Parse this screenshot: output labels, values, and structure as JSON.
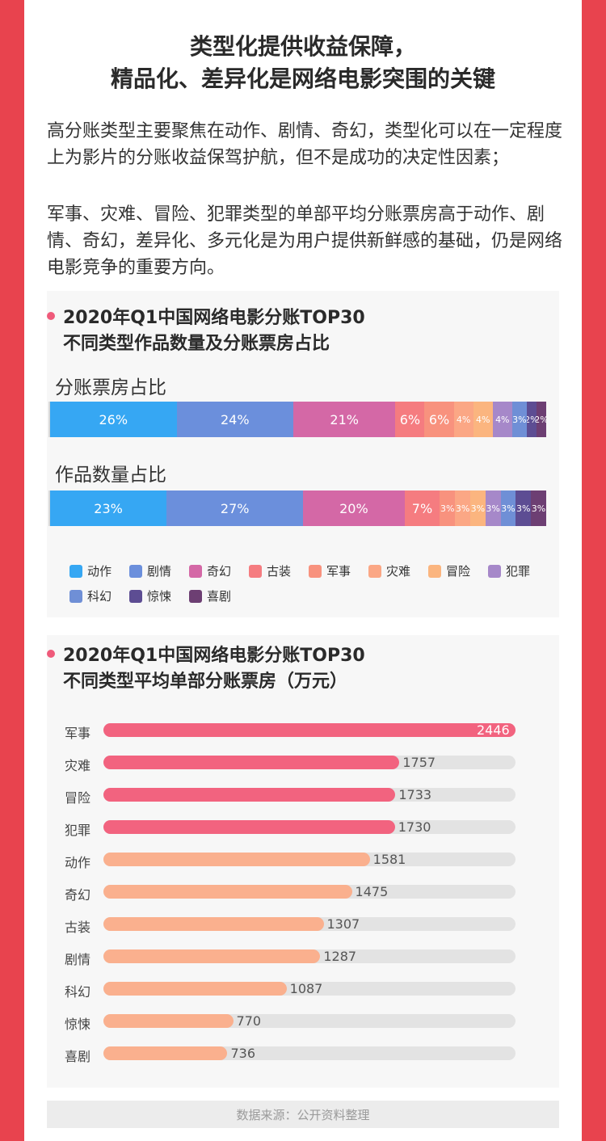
{
  "headline": {
    "line1": "类型化提供收益保障，",
    "line2": "精品化、差异化是网络电影突围的关键"
  },
  "paragraphs": [
    "高分账类型主要聚焦在动作、剧情、奇幻，类型化可以在一定程度上为影片的分账收益保驾护航，但不是成功的决定性因素；",
    "军事、灾难、冒险、犯罪类型的单部平均分账票房高于动作、剧情、奇幻，差异化、多元化是为用户提供新鲜感的基础，仍是网络电影竞争的重要方向。"
  ],
  "section1": {
    "title_line1": "2020年Q1中国网络电影分账TOP30",
    "title_line2": "不同类型作品数量及分账票房占比"
  },
  "section2": {
    "title_line1": "2020年Q1中国网络电影分账TOP30",
    "title_line2": "不同类型平均单部分账票房（万元）"
  },
  "colors": {
    "动作": "#36a7f3",
    "剧情": "#6b8fdc",
    "奇幻": "#d468a6",
    "古装": "#f57c80",
    "军事": "#f8927e",
    "灾难": "#fba785",
    "冒险": "#fbb57f",
    "犯罪": "#a688c9",
    "科幻": "#6f8fd6",
    "惊悚": "#5d4d93",
    "喜剧": "#6d3f73",
    "hbar_pink": "#f2637f",
    "hbar_orange": "#fab08e"
  },
  "chart_data": [
    {
      "type": "bar",
      "stacked": true,
      "orientation": "horizontal",
      "title": "分账票房占比",
      "categories": [
        "动作",
        "剧情",
        "奇幻",
        "古装",
        "军事",
        "灾难",
        "冒险",
        "犯罪",
        "科幻",
        "惊悚",
        "喜剧"
      ],
      "values": [
        26,
        24,
        21,
        6,
        6,
        4,
        4,
        4,
        3,
        2,
        2
      ],
      "labels": [
        "26%",
        "24%",
        "21%",
        "6%",
        "6%",
        "4%",
        "4%",
        "4%",
        "3%",
        "2%",
        "2%"
      ],
      "unit": "%"
    },
    {
      "type": "bar",
      "stacked": true,
      "orientation": "horizontal",
      "title": "作品数量占比",
      "categories": [
        "动作",
        "剧情",
        "奇幻",
        "古装",
        "军事",
        "灾难",
        "冒险",
        "犯罪",
        "科幻",
        "惊悚",
        "喜剧"
      ],
      "values": [
        23,
        27,
        20,
        7,
        3,
        3,
        3,
        3,
        3,
        3,
        3
      ],
      "labels": [
        "23%",
        "27%",
        "20%",
        "7%",
        "3%",
        "3%",
        "3%",
        "3%",
        "3%",
        "3%",
        "3%"
      ],
      "unit": "%"
    },
    {
      "type": "bar",
      "orientation": "horizontal",
      "title": "",
      "categories": [
        "军事",
        "灾难",
        "冒险",
        "犯罪",
        "动作",
        "奇幻",
        "古装",
        "剧情",
        "科幻",
        "惊悚",
        "喜剧"
      ],
      "values": [
        2446,
        1757,
        1733,
        1730,
        1581,
        1475,
        1307,
        1287,
        1087,
        770,
        736
      ],
      "xlim": [
        0,
        2446
      ]
    }
  ],
  "legend": [
    "动作",
    "剧情",
    "奇幻",
    "古装",
    "军事",
    "灾难",
    "冒险",
    "犯罪",
    "科幻",
    "惊悚",
    "喜剧"
  ],
  "footer": {
    "source": "数据来源：公开资料整理"
  }
}
